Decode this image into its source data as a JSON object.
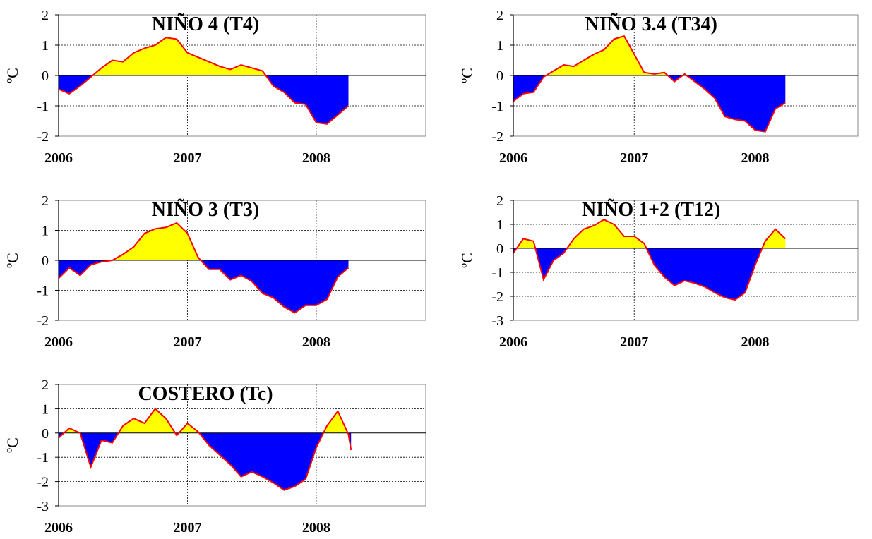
{
  "chart_data": [
    {
      "type": "area",
      "title": "NIÑO 4 (T4)",
      "ylabel": "ºC",
      "ylim": [
        -2,
        2
      ],
      "yticks": [
        2,
        1,
        0,
        -1,
        -2
      ],
      "xlim": [
        2006,
        2008.85
      ],
      "xticks": [
        "2006",
        "2007",
        "2008"
      ],
      "grid": "horizontal dashed, vertical dashed at 2007 and 2008",
      "colors": {
        "positive": "#ffff00",
        "negative": "#0000ff",
        "line": "#ff0000"
      },
      "x": [
        2006.0,
        2006.083,
        2006.167,
        2006.25,
        2006.333,
        2006.417,
        2006.5,
        2006.583,
        2006.667,
        2006.75,
        2006.833,
        2006.917,
        2007.0,
        2007.083,
        2007.167,
        2007.25,
        2007.333,
        2007.417,
        2007.5,
        2007.583,
        2007.667,
        2007.75,
        2007.833,
        2007.917,
        2008.0,
        2008.083,
        2008.167,
        2008.25
      ],
      "values": [
        -0.45,
        -0.6,
        -0.35,
        -0.05,
        0.25,
        0.5,
        0.45,
        0.75,
        0.9,
        1.0,
        1.25,
        1.2,
        0.75,
        0.6,
        0.45,
        0.3,
        0.2,
        0.35,
        0.25,
        0.15,
        -0.35,
        -0.55,
        -0.9,
        -0.95,
        -1.55,
        -1.6,
        -1.3,
        -1.0
      ]
    },
    {
      "type": "area",
      "title": "NIÑO 3.4 (T34)",
      "ylabel": "ºC",
      "ylim": [
        -2,
        2
      ],
      "yticks": [
        2,
        1,
        0,
        -1,
        -2
      ],
      "xlim": [
        2006,
        2008.85
      ],
      "xticks": [
        "2006",
        "2007",
        "2008"
      ],
      "grid": "horizontal dashed, vertical dashed at 2007 and 2008",
      "colors": {
        "positive": "#ffff00",
        "negative": "#0000ff",
        "line": "#ff0000"
      },
      "x": [
        2006.0,
        2006.083,
        2006.167,
        2006.25,
        2006.333,
        2006.417,
        2006.5,
        2006.583,
        2006.667,
        2006.75,
        2006.833,
        2006.917,
        2007.0,
        2007.083,
        2007.167,
        2007.25,
        2007.333,
        2007.417,
        2007.5,
        2007.583,
        2007.667,
        2007.75,
        2007.833,
        2007.917,
        2008.0,
        2008.083,
        2008.167,
        2008.25
      ],
      "values": [
        -0.85,
        -0.6,
        -0.55,
        -0.05,
        0.15,
        0.35,
        0.3,
        0.5,
        0.7,
        0.85,
        1.2,
        1.3,
        0.7,
        0.1,
        0.05,
        0.1,
        -0.2,
        0.05,
        -0.2,
        -0.45,
        -0.75,
        -1.35,
        -1.45,
        -1.5,
        -1.8,
        -1.85,
        -1.1,
        -0.9
      ]
    },
    {
      "type": "area",
      "title": "NIÑO 3 (T3)",
      "ylabel": "ºC",
      "ylim": [
        -2,
        2
      ],
      "yticks": [
        2,
        1,
        0,
        -1,
        -2
      ],
      "xlim": [
        2006,
        2008.85
      ],
      "xticks": [
        "2006",
        "2007",
        "2008"
      ],
      "grid": "horizontal dashed, vertical dashed at 2007 and 2008",
      "colors": {
        "positive": "#ffff00",
        "negative": "#0000ff",
        "line": "#ff0000"
      },
      "x": [
        2006.0,
        2006.083,
        2006.167,
        2006.25,
        2006.333,
        2006.417,
        2006.5,
        2006.583,
        2006.667,
        2006.75,
        2006.833,
        2006.917,
        2007.0,
        2007.083,
        2007.167,
        2007.25,
        2007.333,
        2007.417,
        2007.5,
        2007.583,
        2007.667,
        2007.75,
        2007.833,
        2007.917,
        2008.0,
        2008.083,
        2008.167,
        2008.25
      ],
      "values": [
        -0.6,
        -0.25,
        -0.5,
        -0.15,
        -0.05,
        0.0,
        0.2,
        0.45,
        0.9,
        1.05,
        1.1,
        1.25,
        0.9,
        0.1,
        -0.3,
        -0.3,
        -0.65,
        -0.5,
        -0.7,
        -1.1,
        -1.25,
        -1.55,
        -1.75,
        -1.5,
        -1.5,
        -1.3,
        -0.55,
        -0.25
      ]
    },
    {
      "type": "area",
      "title": "NIÑO 1+2 (T12)",
      "ylabel": "ºC",
      "ylim": [
        -3,
        2
      ],
      "yticks": [
        2,
        1,
        0,
        -1,
        -2,
        -3
      ],
      "xlim": [
        2006,
        2008.85
      ],
      "xticks": [
        "2006",
        "2007",
        "2008"
      ],
      "grid": "horizontal dashed, vertical dashed at 2007 and 2008",
      "colors": {
        "positive": "#ffff00",
        "negative": "#0000ff",
        "line": "#ff0000"
      },
      "x": [
        2006.0,
        2006.083,
        2006.167,
        2006.25,
        2006.333,
        2006.417,
        2006.5,
        2006.583,
        2006.667,
        2006.75,
        2006.833,
        2006.917,
        2007.0,
        2007.083,
        2007.167,
        2007.25,
        2007.333,
        2007.417,
        2007.5,
        2007.583,
        2007.667,
        2007.75,
        2007.833,
        2007.917,
        2008.0,
        2008.083,
        2008.167,
        2008.25
      ],
      "values": [
        -0.2,
        0.4,
        0.3,
        -1.3,
        -0.5,
        -0.2,
        0.4,
        0.8,
        0.95,
        1.2,
        1.0,
        0.5,
        0.5,
        0.2,
        -0.7,
        -1.2,
        -1.55,
        -1.35,
        -1.45,
        -1.6,
        -1.85,
        -2.05,
        -2.15,
        -1.85,
        -0.7,
        0.3,
        0.8,
        0.4
      ]
    },
    {
      "type": "area",
      "title": "COSTERO (Tc)",
      "ylabel": "ºC",
      "ylim": [
        -3,
        2
      ],
      "yticks": [
        2,
        1,
        0,
        -1,
        -2,
        -3
      ],
      "xlim": [
        2006,
        2008.85
      ],
      "xticks": [
        "2006",
        "2007",
        "2008"
      ],
      "grid": "horizontal dashed, vertical dashed at 2007 and 2008",
      "colors": {
        "positive": "#ffff00",
        "negative": "#0000ff",
        "line": "#ff0000"
      },
      "x": [
        2006.0,
        2006.083,
        2006.167,
        2006.25,
        2006.333,
        2006.417,
        2006.5,
        2006.583,
        2006.667,
        2006.75,
        2006.833,
        2006.917,
        2007.0,
        2007.083,
        2007.167,
        2007.25,
        2007.333,
        2007.417,
        2007.5,
        2007.583,
        2007.667,
        2007.75,
        2007.833,
        2007.917,
        2008.0,
        2008.083,
        2008.167,
        2008.25,
        2008.27
      ],
      "values": [
        -0.2,
        0.2,
        0.0,
        -1.4,
        -0.3,
        -0.4,
        0.3,
        0.6,
        0.4,
        1.0,
        0.6,
        -0.1,
        0.4,
        0.05,
        -0.5,
        -0.9,
        -1.3,
        -1.8,
        -1.6,
        -1.8,
        -2.05,
        -2.35,
        -2.2,
        -1.9,
        -0.6,
        0.3,
        0.9,
        -0.05,
        -0.7
      ]
    }
  ]
}
